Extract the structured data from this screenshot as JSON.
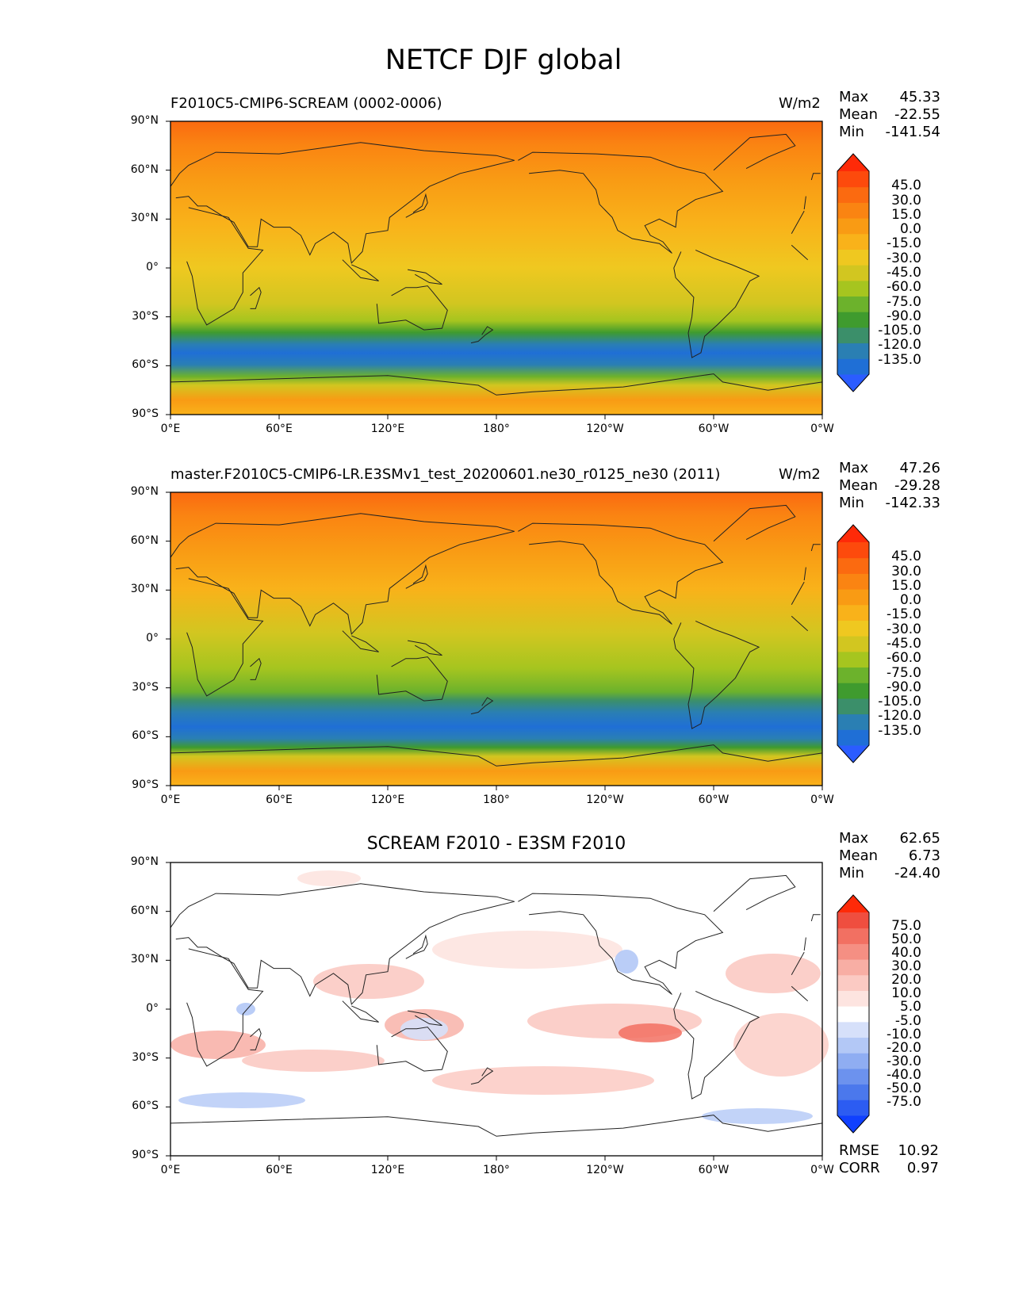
{
  "figure": {
    "title": "NETCF DJF global"
  },
  "axes": {
    "lat_ticks": [
      "90°N",
      "60°N",
      "30°N",
      "0°",
      "30°S",
      "60°S",
      "90°S"
    ],
    "lon_ticks": [
      "0°E",
      "60°E",
      "120°E",
      "180°",
      "120°W",
      "60°W",
      "0°W"
    ]
  },
  "panels": [
    {
      "title_left": "F2010C5-CMIP6-SCREAM (0002-0006)",
      "title_center": "",
      "units": "W/m2",
      "stats": [
        {
          "label": "Max",
          "value": "45.33"
        },
        {
          "label": "Mean",
          "value": "-22.55"
        },
        {
          "label": "Min",
          "value": "-141.54"
        }
      ],
      "colorbar": {
        "labels": [
          "45.0",
          "30.0",
          "15.0",
          "0.0",
          "-15.0",
          "-30.0",
          "-45.0",
          "-60.0",
          "-75.0",
          "-90.0",
          "-105.0",
          "-120.0",
          "-135.0"
        ],
        "colors": [
          "#2b5cff",
          "#1f6fd6",
          "#2a7fb3",
          "#3b8f6a",
          "#3f9b2e",
          "#6cb22c",
          "#a6c51f",
          "#d2c620",
          "#efc820",
          "#f9b21a",
          "#f99b14",
          "#fa8412",
          "#fb6a10",
          "#fd4a0c",
          "#fe2a08"
        ]
      }
    },
    {
      "title_left": "master.F2010C5-CMIP6-LR.E3SMv1_test_20200601.ne30_r0125_ne30 (2011)",
      "title_center": "",
      "units": "W/m2",
      "stats": [
        {
          "label": "Max",
          "value": "47.26"
        },
        {
          "label": "Mean",
          "value": "-29.28"
        },
        {
          "label": "Min",
          "value": "-142.33"
        }
      ],
      "colorbar": {
        "labels": [
          "45.0",
          "30.0",
          "15.0",
          "0.0",
          "-15.0",
          "-30.0",
          "-45.0",
          "-60.0",
          "-75.0",
          "-90.0",
          "-105.0",
          "-120.0",
          "-135.0"
        ],
        "colors": [
          "#2b5cff",
          "#1f6fd6",
          "#2a7fb3",
          "#3b8f6a",
          "#3f9b2e",
          "#6cb22c",
          "#a6c51f",
          "#d2c620",
          "#efc820",
          "#f9b21a",
          "#f99b14",
          "#fa8412",
          "#fb6a10",
          "#fd4a0c",
          "#fe2a08"
        ]
      }
    },
    {
      "title_left": "",
      "title_center": "SCREAM F2010 - E3SM F2010",
      "units": "",
      "stats": [
        {
          "label": "Max",
          "value": "62.65"
        },
        {
          "label": "Mean",
          "value": "6.73"
        },
        {
          "label": "Min",
          "value": "-24.40"
        }
      ],
      "colorbar": {
        "labels": [
          "75.0",
          "50.0",
          "40.0",
          "30.0",
          "20.0",
          "10.0",
          "5.0",
          "-5.0",
          "-10.0",
          "-20.0",
          "-30.0",
          "-40.0",
          "-50.0",
          "-75.0"
        ],
        "colors": [
          "#1040ff",
          "#2c5cf2",
          "#4b78ec",
          "#6c92ee",
          "#8fadf2",
          "#b3c8f6",
          "#d6e0fa",
          "#ffffff",
          "#fde4e0",
          "#fbcac3",
          "#f8aea4",
          "#f58f83",
          "#f27062",
          "#ef4e3f",
          "#fe2a08"
        ]
      },
      "footer": [
        {
          "label": "RMSE",
          "value": "10.92"
        },
        {
          "label": "CORR",
          "value": "0.97"
        }
      ]
    }
  ]
}
